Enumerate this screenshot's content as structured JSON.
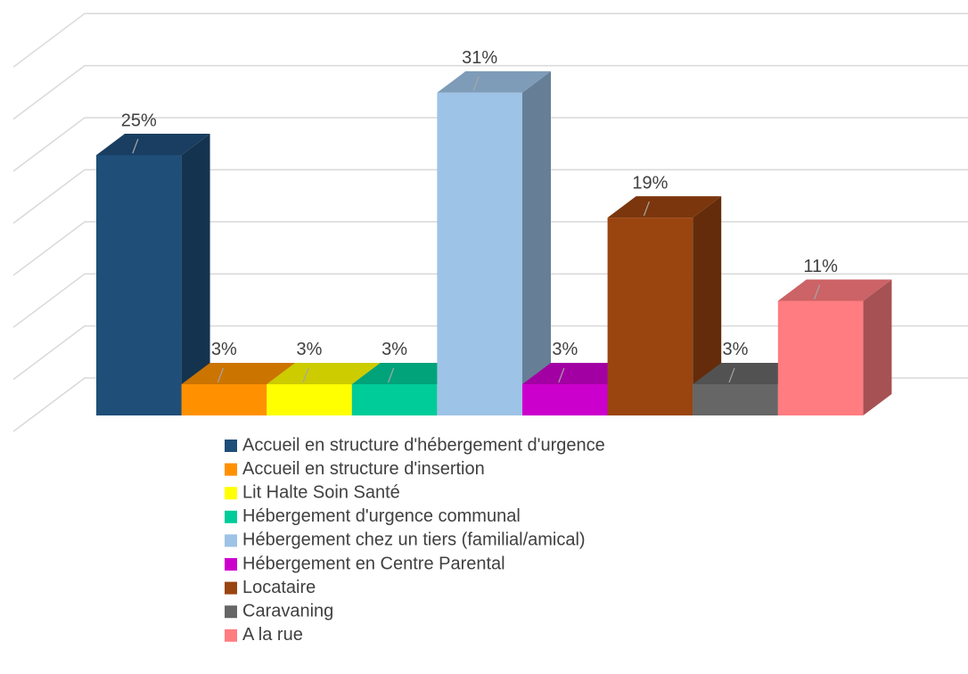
{
  "chart_data": {
    "type": "bar3d",
    "categories": [
      "Accueil en structure d'hébergement d'urgence",
      "Accueil en structure d'insertion",
      "Lit Halte Soin Santé",
      "Hébergement d'urgence communal",
      "Hébergement chez un tiers (familial/amical)",
      "Hébergement en Centre Parental",
      "Locataire",
      "Caravaning",
      "A la rue"
    ],
    "values": [
      25,
      3,
      3,
      3,
      31,
      3,
      19,
      3,
      11
    ],
    "value_labels": [
      "25%",
      "3%",
      "3%",
      "3%",
      "31%",
      "3%",
      "19%",
      "3%",
      "11%"
    ],
    "colors": [
      "#1f4e79",
      "#ff9100",
      "#ffff00",
      "#00cc99",
      "#9dc3e6",
      "#cc00cc",
      "#9a4410",
      "#666666",
      "#ff7c80"
    ],
    "ylim": [
      0,
      35
    ],
    "yticks": [
      0,
      5,
      10,
      15,
      20,
      25,
      30,
      35
    ],
    "grid": true,
    "legend": "bottom"
  }
}
